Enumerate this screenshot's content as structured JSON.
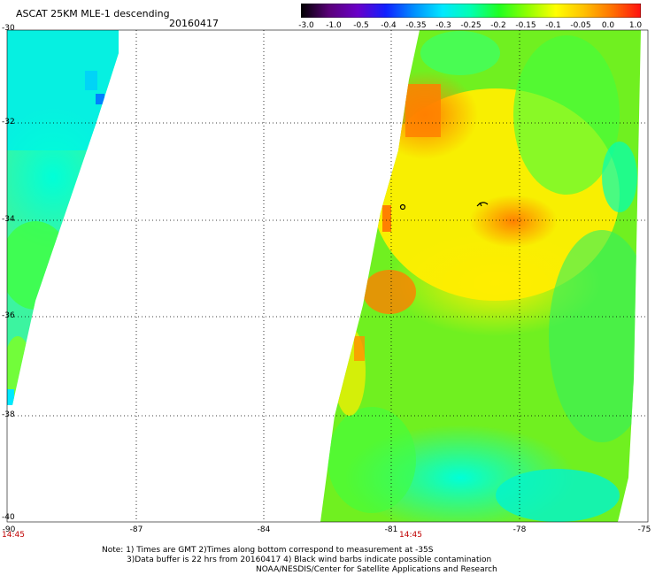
{
  "header": {
    "title": "ASCAT 25KM MLE-1 descending",
    "date": "20160417"
  },
  "colorbar": {
    "ticks": [
      "-3.0",
      "-1.0",
      "-0.5",
      "-0.4",
      "-0.35",
      "-0.3",
      "-0.25",
      "-0.2",
      "-0.15",
      "-0.1",
      "-0.05",
      "0.0",
      "1.0"
    ],
    "colors": [
      "#000000",
      "#5a007a",
      "#6a00c8",
      "#1020ff",
      "#0090ff",
      "#00e8ff",
      "#00ffb0",
      "#20ff20",
      "#90ff00",
      "#ffff00",
      "#ffc000",
      "#ff7000",
      "#ff1010"
    ]
  },
  "axes": {
    "lat_labels": [
      "-30",
      "-32",
      "-34",
      "-36",
      "-38",
      "-40"
    ],
    "lon_labels": [
      "-90",
      "-87",
      "-84",
      "-81",
      "-78",
      "-75"
    ],
    "lat_range": [
      -40,
      -30
    ],
    "lon_range": [
      -90,
      -75
    ]
  },
  "times": {
    "left_swath": "14:45",
    "right_swath": "14:45"
  },
  "notes": {
    "line1": "Note: 1) Times are GMT 2)Times along bottom correspond to measurement at -35S",
    "line2": "3)Data buffer is 22 hrs from 20160417 4) Black wind barbs indicate possible contamination",
    "line3": "NOAA/NESDIS/Center for Satellite Applications and Research"
  }
}
